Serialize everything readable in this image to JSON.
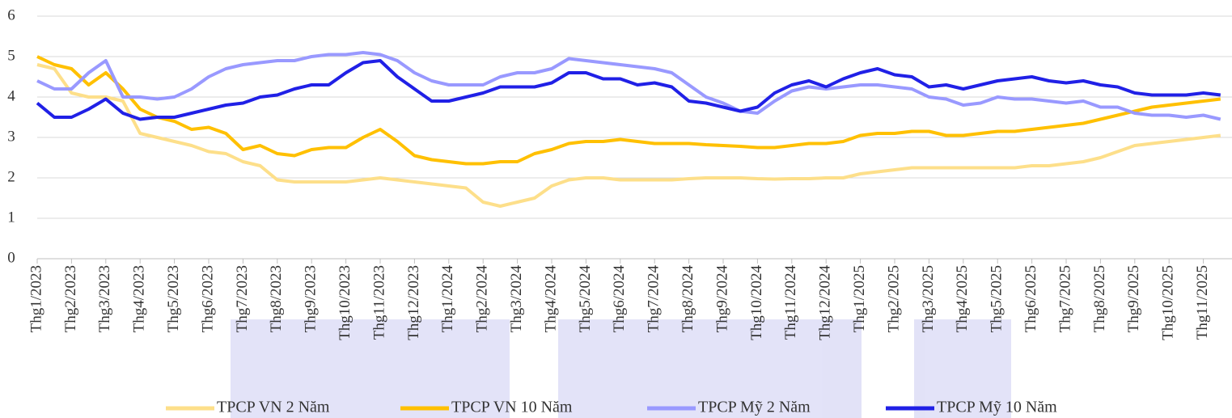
{
  "chart_data": {
    "type": "line",
    "categories": [
      "Thg1/2023",
      null,
      "Thg2/2023",
      null,
      "Thg3/2023",
      null,
      "Thg4/2023",
      null,
      "Thg5/2023",
      null,
      "Thg6/2023",
      null,
      "Thg7/2023",
      null,
      "Thg8/2023",
      null,
      "Thg9/2023",
      null,
      "Thg10/2023",
      null,
      "Thg11/2023",
      null,
      "Thg12/2023",
      null,
      "Thg1/2024",
      null,
      "Thg2/2024",
      null,
      "Thg3/2024",
      null,
      "Thg4/2024",
      null,
      "Thg5/2024",
      null,
      "Thg6/2024",
      null,
      "Thg7/2024",
      null,
      "Thg8/2024",
      null,
      "Thg9/2024",
      null,
      "Thg10/2024",
      null,
      "Thg11/2024",
      null,
      "Thg12/2024",
      null,
      "Thg1/2025",
      null,
      "Thg2/2025",
      null,
      "Thg3/2025",
      null,
      "Thg4/2025",
      null,
      "Thg5/2025",
      null,
      "Thg6/2025",
      null,
      "Thg7/2025",
      null,
      "Thg8/2025",
      null,
      "Thg9/2025",
      null,
      "Thg10/2025",
      null,
      "Thg11/2025",
      null
    ],
    "series": [
      {
        "name": "TPCP VN 2 Năm",
        "color": "#fddf8a",
        "values": [
          4.8,
          4.7,
          4.1,
          4.0,
          4.0,
          3.9,
          3.1,
          3.0,
          2.9,
          2.8,
          2.65,
          2.6,
          2.4,
          2.3,
          1.95,
          1.9,
          1.9,
          1.9,
          1.9,
          1.95,
          2.0,
          1.95,
          1.9,
          1.85,
          1.8,
          1.75,
          1.4,
          1.3,
          1.4,
          1.5,
          1.8,
          1.95,
          2.0,
          2.0,
          1.95,
          1.95,
          1.95,
          1.95,
          1.98,
          2.0,
          2.0,
          2.0,
          1.98,
          1.97,
          1.98,
          1.98,
          2.0,
          2.0,
          2.1,
          2.15,
          2.2,
          2.25,
          2.25,
          2.25,
          2.25,
          2.25,
          2.25,
          2.25,
          2.3,
          2.3,
          2.35,
          2.4,
          2.5,
          2.65,
          2.8,
          2.85,
          2.9,
          2.95,
          3.0,
          3.05
        ]
      },
      {
        "name": "TPCP VN 10 Năm",
        "color": "#ffc000",
        "values": [
          5.0,
          4.8,
          4.7,
          4.3,
          4.6,
          4.2,
          3.7,
          3.5,
          3.4,
          3.2,
          3.25,
          3.1,
          2.7,
          2.8,
          2.6,
          2.55,
          2.7,
          2.75,
          2.75,
          3.0,
          3.2,
          2.9,
          2.55,
          2.45,
          2.4,
          2.35,
          2.35,
          2.4,
          2.4,
          2.6,
          2.7,
          2.85,
          2.9,
          2.9,
          2.95,
          2.9,
          2.85,
          2.85,
          2.85,
          2.82,
          2.8,
          2.78,
          2.75,
          2.75,
          2.8,
          2.85,
          2.85,
          2.9,
          3.05,
          3.1,
          3.1,
          3.15,
          3.15,
          3.05,
          3.05,
          3.1,
          3.15,
          3.15,
          3.2,
          3.25,
          3.3,
          3.35,
          3.45,
          3.55,
          3.65,
          3.75,
          3.8,
          3.85,
          3.9,
          3.95
        ]
      },
      {
        "name": "TPCP Mỹ 2 Năm",
        "color": "#9999ff",
        "values": [
          4.4,
          4.2,
          4.2,
          4.6,
          4.9,
          4.0,
          4.0,
          3.95,
          4.0,
          4.2,
          4.5,
          4.7,
          4.8,
          4.85,
          4.9,
          4.9,
          5.0,
          5.05,
          5.05,
          5.1,
          5.05,
          4.9,
          4.6,
          4.4,
          4.3,
          4.3,
          4.3,
          4.5,
          4.6,
          4.6,
          4.7,
          4.95,
          4.9,
          4.85,
          4.8,
          4.75,
          4.7,
          4.6,
          4.3,
          4.0,
          3.85,
          3.65,
          3.6,
          3.9,
          4.15,
          4.25,
          4.2,
          4.25,
          4.3,
          4.3,
          4.25,
          4.2,
          4.0,
          3.95,
          3.8,
          3.85,
          4.0,
          3.95,
          3.95,
          3.9,
          3.85,
          3.9,
          3.75,
          3.75,
          3.6,
          3.55,
          3.55,
          3.5,
          3.55,
          3.45
        ]
      },
      {
        "name": "TPCP Mỹ 10 Năm",
        "color": "#2020e6",
        "values": [
          3.85,
          3.5,
          3.5,
          3.7,
          3.95,
          3.6,
          3.45,
          3.5,
          3.5,
          3.6,
          3.7,
          3.8,
          3.85,
          4.0,
          4.05,
          4.2,
          4.3,
          4.3,
          4.6,
          4.85,
          4.9,
          4.5,
          4.2,
          3.9,
          3.9,
          4.0,
          4.1,
          4.25,
          4.25,
          4.25,
          4.35,
          4.6,
          4.6,
          4.45,
          4.45,
          4.3,
          4.35,
          4.25,
          3.9,
          3.85,
          3.75,
          3.65,
          3.75,
          4.1,
          4.3,
          4.4,
          4.25,
          4.45,
          4.6,
          4.7,
          4.55,
          4.5,
          4.25,
          4.3,
          4.2,
          4.3,
          4.4,
          4.45,
          4.5,
          4.4,
          4.35,
          4.4,
          4.3,
          4.25,
          4.1,
          4.05,
          4.05,
          4.05,
          4.1,
          4.05
        ]
      }
    ],
    "ylim": [
      0,
      6
    ],
    "yticks": [
      0,
      1,
      2,
      3,
      4,
      5,
      6
    ],
    "grid": true,
    "legend": "bottom"
  }
}
